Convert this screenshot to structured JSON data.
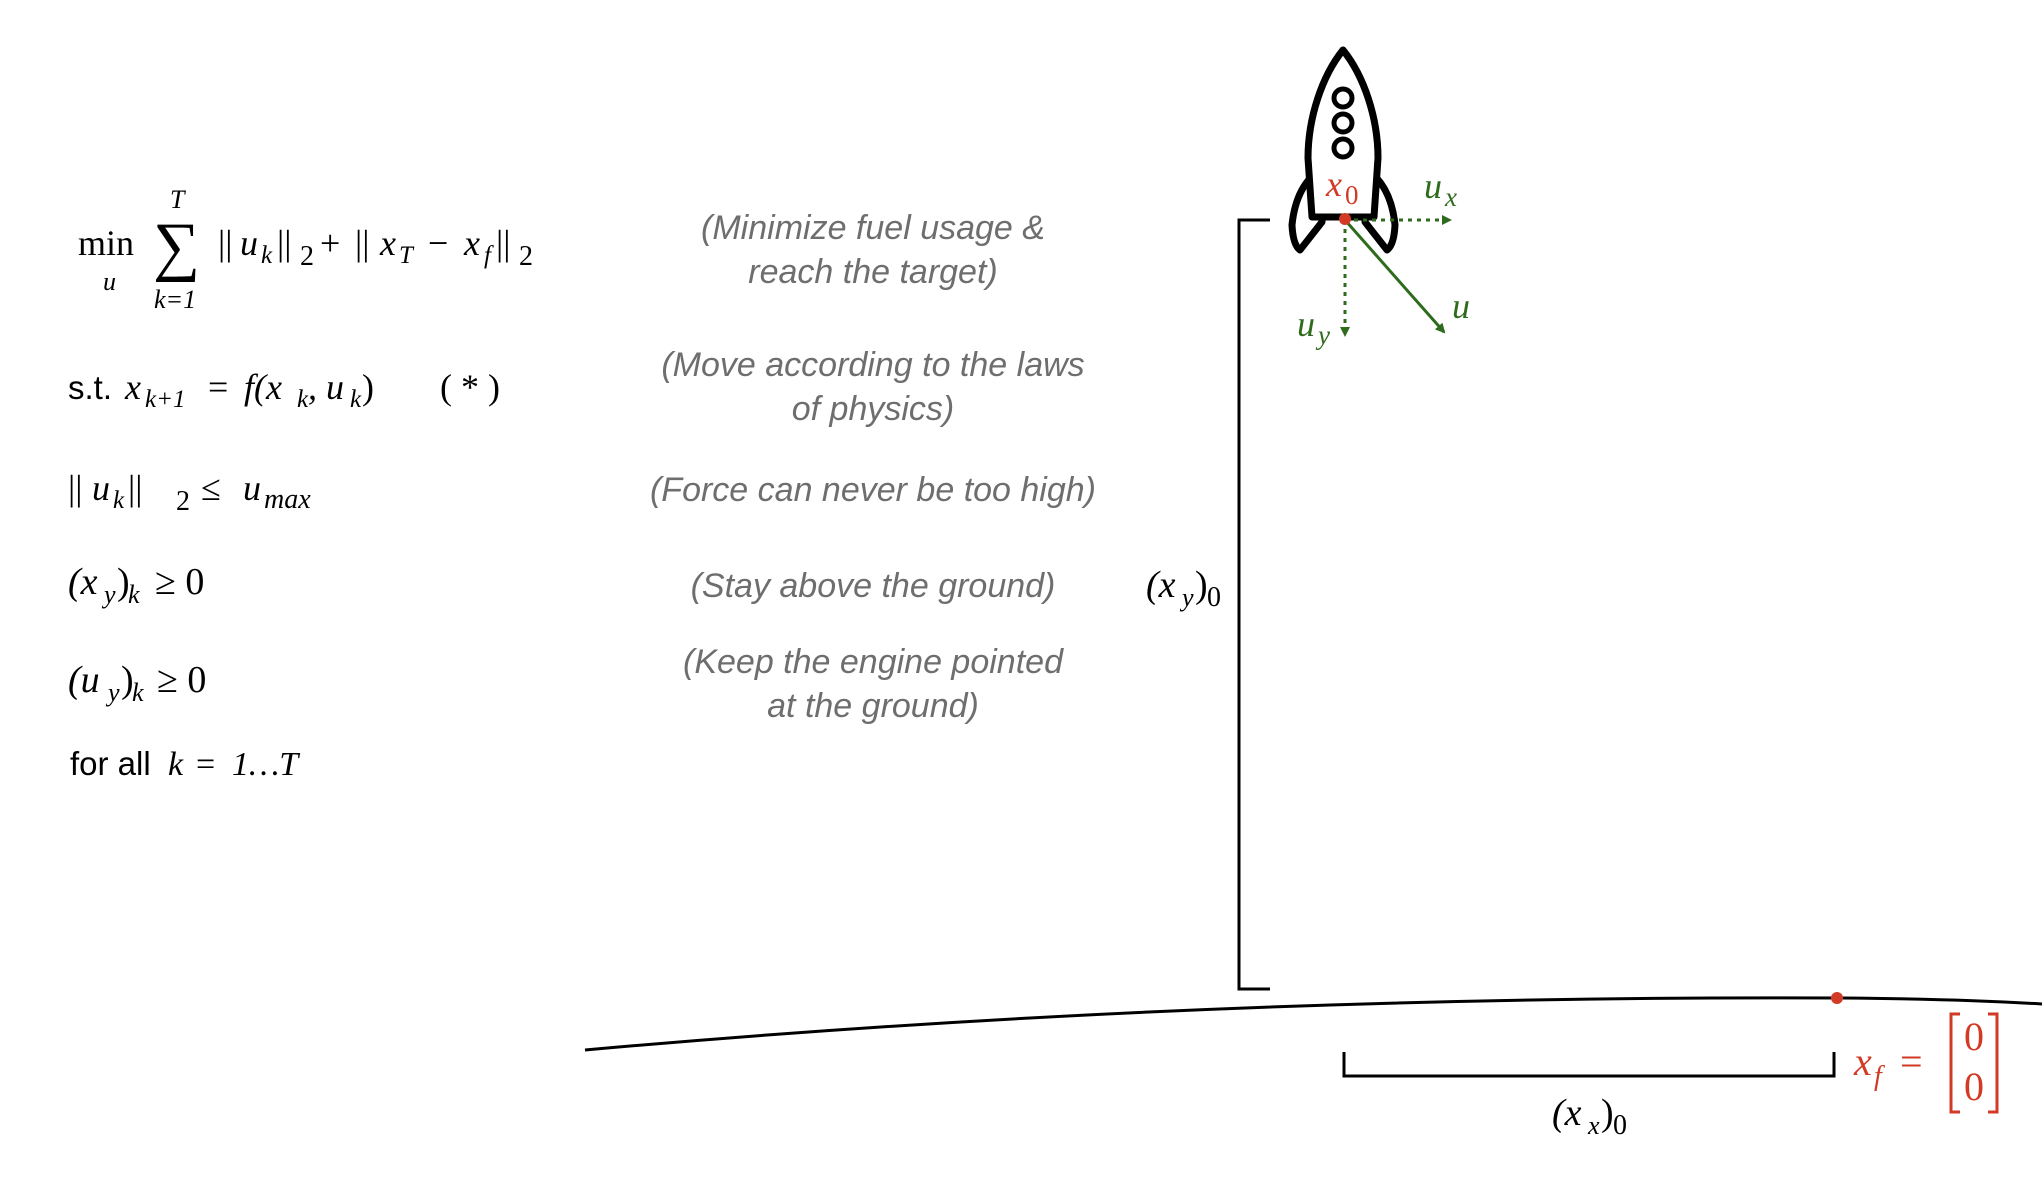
{
  "objective": {
    "min": "min",
    "min_var": "u",
    "sum_upper": "T",
    "sum_lower": "k=1",
    "bars_l": "||",
    "u": "u",
    "k": "k",
    "two": "2",
    "plus": "+",
    "x": "x",
    "T": "T",
    "minus": "−",
    "f": "f"
  },
  "dynamics": {
    "st": "s.t.",
    "x": "x",
    "k1": "k+1",
    "eq": "=",
    "f": "f(x",
    "k": "k",
    "comma_u": ", u",
    "close": ")",
    "tag": "( * )"
  },
  "force_limit": {
    "bars": "||",
    "u": "u",
    "k": "k",
    "two": "2",
    "leq": "≤",
    "umax": "u",
    "max": "max"
  },
  "ground_constraint": {
    "open": "(x",
    "y": "y",
    "close": ")",
    "k": "k",
    "geq": "≥ 0"
  },
  "engine_constraint": {
    "open": "(u",
    "y": "y",
    "close": ")",
    "k": "k",
    "geq": "≥ 0"
  },
  "for_all": {
    "text": "for all",
    "k": "k",
    "eq": "=",
    "range": "1…T"
  },
  "notes": {
    "fuel_line1": "(Minimize fuel usage &",
    "fuel_line2": "reach the target)",
    "physics_line1": "(Move according to the laws",
    "physics_line2": "of physics)",
    "force": "(Force can never be too high)",
    "ground": "(Stay above the ground)",
    "engine_line1": "(Keep the engine pointed",
    "engine_line2": "at the ground)"
  },
  "height_label": {
    "open": "(x",
    "y": "y",
    "close": ")",
    "zero": "0"
  },
  "distance_label": {
    "open": "(x",
    "x": "x",
    "close": ")",
    "zero": "0"
  },
  "rocket_labels": {
    "x0_x": "x",
    "x0_sub": "0",
    "ux_u": "u",
    "ux_sub": "x",
    "uy_u": "u",
    "uy_sub": "y",
    "u": "u"
  },
  "target_label": {
    "x": "x",
    "f": "f",
    "eq": "=",
    "top": "0",
    "bottom": "0"
  },
  "colors": {
    "target_red": "#d23a26",
    "force_green": "#2e6b1c",
    "note_gray": "#6e6e6e"
  },
  "icons": {
    "rocket": "rocket-icon"
  }
}
